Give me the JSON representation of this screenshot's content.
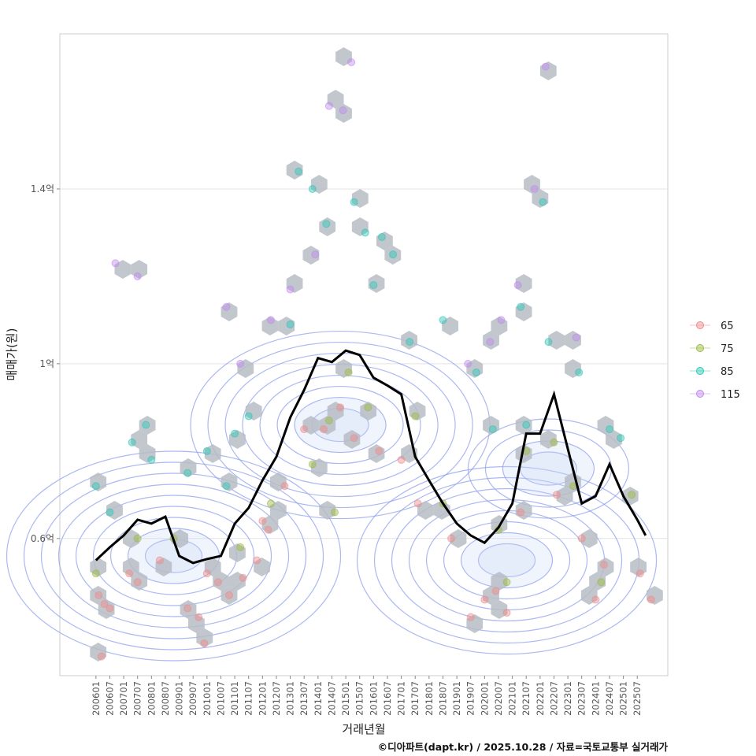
{
  "chart_data": {
    "type": "scatter",
    "title": "",
    "xlabel": "거래년월",
    "ylabel": "매매가(원)",
    "caption": "©디아파트(dapt.kr) / 2025.10.28 / 자료=국토교통부 실거래가",
    "x_ticks": [
      "200601",
      "200607",
      "200701",
      "200707",
      "200801",
      "200807",
      "200901",
      "200907",
      "201001",
      "201007",
      "201101",
      "201107",
      "201201",
      "201207",
      "201301",
      "201307",
      "201401",
      "201407",
      "201501",
      "201507",
      "201601",
      "201607",
      "201701",
      "201707",
      "201801",
      "201807",
      "201901",
      "201907",
      "202001",
      "202007",
      "202101",
      "202107",
      "202201",
      "202207",
      "202301",
      "202307",
      "202401",
      "202407",
      "202501",
      "202507"
    ],
    "y_ticks": [
      {
        "value": 0.6,
        "label": "0.6억"
      },
      {
        "value": 1.0,
        "label": "1억"
      },
      {
        "value": 1.4,
        "label": "1.4억"
      }
    ],
    "xlim": [
      2004.7,
      2026.6
    ],
    "ylim": [
      0.286,
      1.755
    ],
    "grid": true,
    "legend": {
      "position": "right",
      "entries": [
        {
          "label": "65",
          "color": "#f08a8a"
        },
        {
          "label": "75",
          "color": "#9bbb3c"
        },
        {
          "label": "85",
          "color": "#2cc7b5"
        },
        {
          "label": "115",
          "color": "#c08af0"
        }
      ]
    },
    "hex_color": "#b7bcc4",
    "contour_color": "#8fa0ee",
    "trend_color": "#000000",
    "density_peaks": [
      {
        "x": 2008.8,
        "y": 0.56,
        "levels": 9
      },
      {
        "x": 2014.8,
        "y": 0.86,
        "levels": 8
      },
      {
        "x": 2020.8,
        "y": 0.55,
        "levels": 8
      },
      {
        "x": 2022.3,
        "y": 0.76,
        "levels": 4
      }
    ],
    "trend_line": {
      "x": [
        2006.0,
        2006.5,
        2007.0,
        2007.5,
        2008.0,
        2008.5,
        2009.0,
        2009.5,
        2010.0,
        2010.5,
        2011.0,
        2011.5,
        2012.0,
        2012.5,
        2013.0,
        2013.5,
        2014.0,
        2014.5,
        2015.0,
        2015.5,
        2016.0,
        2016.5,
        2017.0,
        2017.5,
        2018.0,
        2018.5,
        2019.0,
        2019.5,
        2020.0,
        2020.5,
        2021.0,
        2021.5,
        2022.0,
        2022.5,
        2023.0,
        2023.5,
        2024.0,
        2024.5,
        2025.0,
        2025.5,
        2025.8
      ],
      "y": [
        0.55,
        0.58,
        0.607,
        0.643,
        0.634,
        0.65,
        0.56,
        0.544,
        0.553,
        0.56,
        0.634,
        0.67,
        0.733,
        0.787,
        0.877,
        0.94,
        1.013,
        1.004,
        1.03,
        1.02,
        0.968,
        0.95,
        0.93,
        0.787,
        0.733,
        0.68,
        0.634,
        0.607,
        0.59,
        0.625,
        0.68,
        0.84,
        0.84,
        0.93,
        0.805,
        0.68,
        0.697,
        0.77,
        0.697,
        0.643,
        0.607
      ]
    },
    "series": [
      {
        "name": "65",
        "points": [
          [
            2006.1,
            0.47
          ],
          [
            2006.3,
            0.45
          ],
          [
            2006.5,
            0.44
          ],
          [
            2007.2,
            0.52
          ],
          [
            2007.5,
            0.5
          ],
          [
            2008.3,
            0.55
          ],
          [
            2009.3,
            0.44
          ],
          [
            2009.7,
            0.42
          ],
          [
            2010.0,
            0.52
          ],
          [
            2010.4,
            0.5
          ],
          [
            2010.8,
            0.47
          ],
          [
            2011.3,
            0.51
          ],
          [
            2011.8,
            0.55
          ],
          [
            2012.2,
            0.62
          ],
          [
            2012.8,
            0.72
          ],
          [
            2013.5,
            0.85
          ],
          [
            2014.2,
            0.85
          ],
          [
            2014.8,
            0.9
          ],
          [
            2015.3,
            0.83
          ],
          [
            2016.2,
            0.8
          ],
          [
            2017.0,
            0.78
          ],
          [
            2017.6,
            0.68
          ],
          [
            2018.8,
            0.6
          ],
          [
            2019.5,
            0.42
          ],
          [
            2020.0,
            0.46
          ],
          [
            2020.4,
            0.48
          ],
          [
            2020.8,
            0.43
          ],
          [
            2021.3,
            0.66
          ],
          [
            2022.6,
            0.7
          ],
          [
            2023.5,
            0.6
          ],
          [
            2024.0,
            0.46
          ],
          [
            2024.3,
            0.54
          ],
          [
            2025.6,
            0.52
          ],
          [
            2026.0,
            0.46
          ],
          [
            2006.2,
            0.33
          ],
          [
            2009.9,
            0.36
          ],
          [
            2012.0,
            0.64
          ]
        ]
      },
      {
        "name": "75",
        "points": [
          [
            2006.0,
            0.52
          ],
          [
            2007.5,
            0.6
          ],
          [
            2008.8,
            0.6
          ],
          [
            2011.2,
            0.58
          ],
          [
            2012.3,
            0.68
          ],
          [
            2013.8,
            0.77
          ],
          [
            2014.4,
            0.87
          ],
          [
            2015.1,
            0.98
          ],
          [
            2015.8,
            0.9
          ],
          [
            2017.5,
            0.88
          ],
          [
            2018.5,
            0.68
          ],
          [
            2020.5,
            0.62
          ],
          [
            2021.5,
            0.8
          ],
          [
            2022.5,
            0.82
          ],
          [
            2023.2,
            0.72
          ],
          [
            2024.2,
            0.5
          ],
          [
            2025.3,
            0.7
          ],
          [
            2014.6,
            0.66
          ],
          [
            2020.8,
            0.5
          ]
        ]
      },
      {
        "name": "85",
        "points": [
          [
            2006.0,
            0.72
          ],
          [
            2006.5,
            0.66
          ],
          [
            2007.3,
            0.82
          ],
          [
            2007.8,
            0.86
          ],
          [
            2008.0,
            0.78
          ],
          [
            2009.3,
            0.75
          ],
          [
            2010.0,
            0.8
          ],
          [
            2010.7,
            0.72
          ],
          [
            2011.0,
            0.84
          ],
          [
            2011.5,
            0.88
          ],
          [
            2013.0,
            1.09
          ],
          [
            2013.3,
            1.44
          ],
          [
            2013.8,
            1.4
          ],
          [
            2014.3,
            1.32
          ],
          [
            2015.3,
            1.37
          ],
          [
            2015.7,
            1.3
          ],
          [
            2016.3,
            1.29
          ],
          [
            2016.7,
            1.25
          ],
          [
            2017.3,
            1.05
          ],
          [
            2018.5,
            1.1
          ],
          [
            2019.7,
            0.98
          ],
          [
            2020.3,
            0.85
          ],
          [
            2021.3,
            1.13
          ],
          [
            2022.1,
            1.37
          ],
          [
            2022.3,
            1.05
          ],
          [
            2023.4,
            0.98
          ],
          [
            2024.5,
            0.85
          ],
          [
            2024.9,
            0.83
          ],
          [
            2016.0,
            1.18
          ],
          [
            2021.5,
            0.86
          ]
        ]
      },
      {
        "name": "115",
        "points": [
          [
            2006.7,
            1.23
          ],
          [
            2007.5,
            1.2
          ],
          [
            2010.7,
            1.13
          ],
          [
            2011.2,
            1.0
          ],
          [
            2012.3,
            1.1
          ],
          [
            2013.0,
            1.17
          ],
          [
            2013.9,
            1.25
          ],
          [
            2014.4,
            1.59
          ],
          [
            2014.9,
            1.58
          ],
          [
            2015.2,
            1.69
          ],
          [
            2019.4,
            1.0
          ],
          [
            2020.2,
            1.05
          ],
          [
            2020.6,
            1.1
          ],
          [
            2021.2,
            1.18
          ],
          [
            2021.8,
            1.4
          ],
          [
            2022.2,
            1.68
          ],
          [
            2023.3,
            1.06
          ]
        ]
      }
    ]
  }
}
